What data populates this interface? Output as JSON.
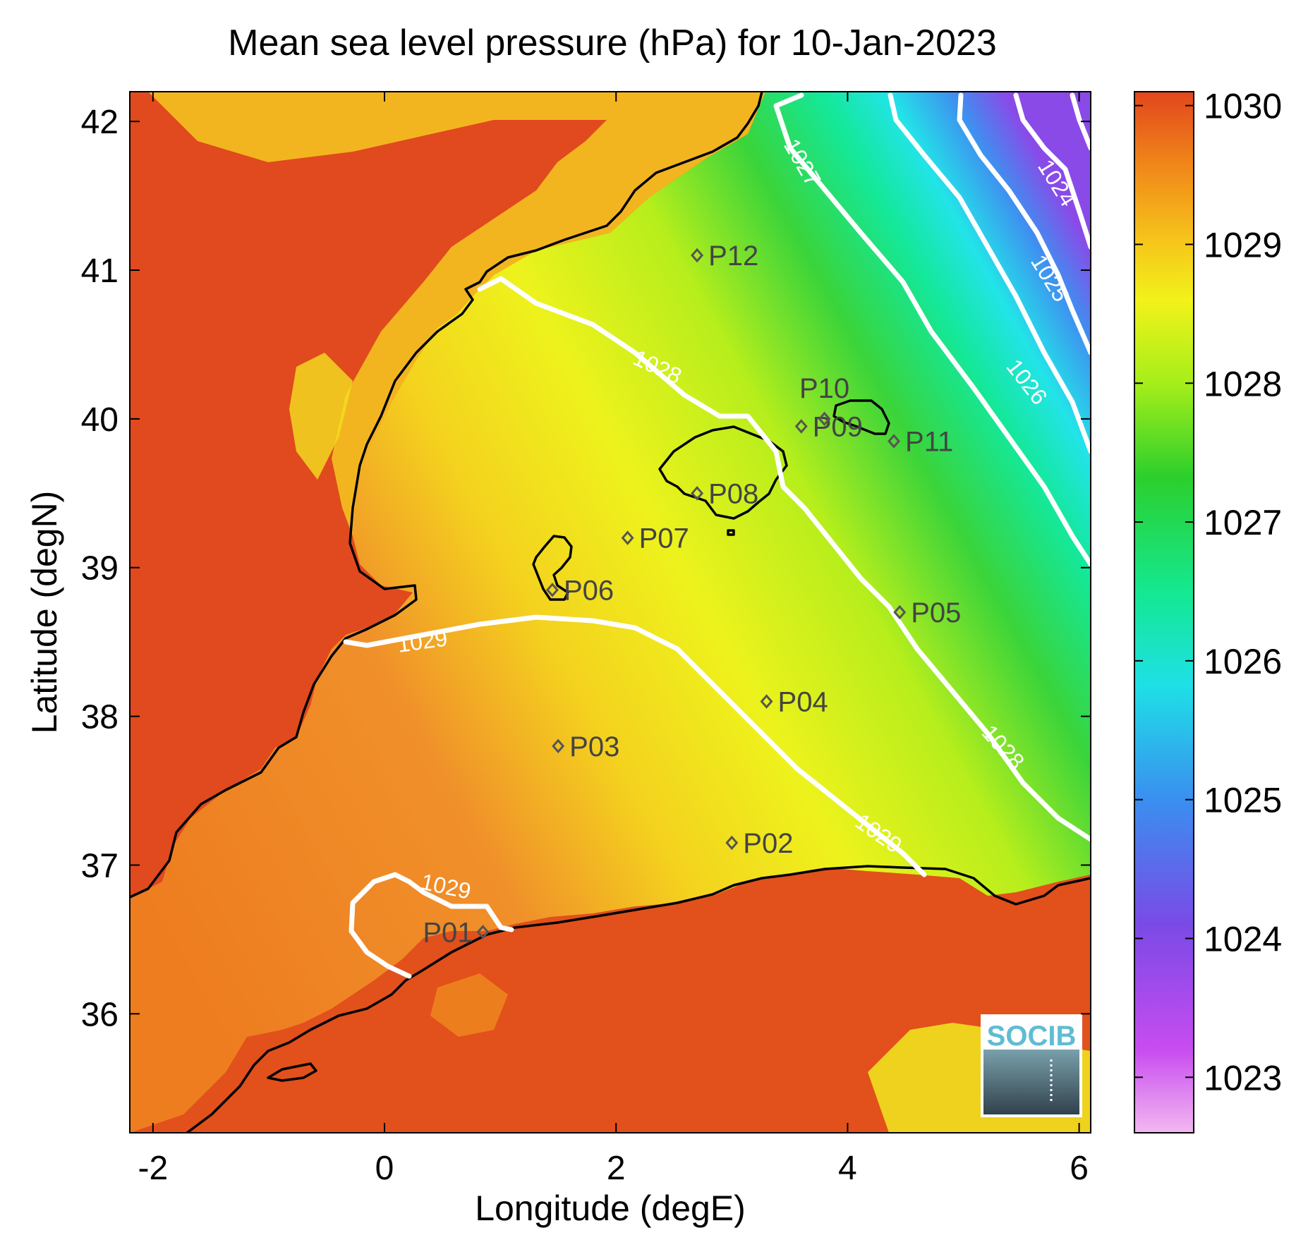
{
  "title": "Mean sea level pressure (hPa) for 10-Jan-2023",
  "x_axis": {
    "label": "Longitude (degE)",
    "range": [
      -2.2,
      6.1
    ],
    "ticks": [
      "-2",
      "0",
      "2",
      "4",
      "6"
    ]
  },
  "y_axis": {
    "label": "Latitude (degN)",
    "range": [
      35.2,
      42.2
    ],
    "ticks": [
      "36",
      "37",
      "38",
      "39",
      "40",
      "41",
      "42"
    ]
  },
  "colorbar": {
    "range": [
      1022.6,
      1030.1
    ],
    "ticks": [
      "1023",
      "1024",
      "1025",
      "1026",
      "1027",
      "1028",
      "1029",
      "1030"
    ],
    "colors": [
      "#f2b8f0",
      "#c84cf0",
      "#7a4ae6",
      "#3a8ff0",
      "#1ee0e6",
      "#14e890",
      "#2ccf2c",
      "#a6ee1a",
      "#f2f21a",
      "#f6c21a",
      "#f0861a",
      "#e2461c"
    ]
  },
  "contour_labels": [
    "1027",
    "1024",
    "1025",
    "1026",
    "1028",
    "1028",
    "1029",
    "1029",
    "1029"
  ],
  "stations": [
    {
      "label": "P01",
      "lon": 0.85,
      "lat": 36.55
    },
    {
      "label": "P02",
      "lon": 3.0,
      "lat": 37.15
    },
    {
      "label": "P03",
      "lon": 1.5,
      "lat": 37.8
    },
    {
      "label": "P04",
      "lon": 3.3,
      "lat": 38.1
    },
    {
      "label": "P05",
      "lon": 4.45,
      "lat": 38.7
    },
    {
      "label": "P06",
      "lon": 1.45,
      "lat": 38.85
    },
    {
      "label": "P07",
      "lon": 2.1,
      "lat": 39.2
    },
    {
      "label": "P08",
      "lon": 2.7,
      "lat": 39.5
    },
    {
      "label": "P09",
      "lon": 3.6,
      "lat": 39.95
    },
    {
      "label": "P10",
      "lon": 3.8,
      "lat": 40.0
    },
    {
      "label": "P11",
      "lon": 4.4,
      "lat": 39.85
    },
    {
      "label": "P12",
      "lon": 2.7,
      "lat": 41.1
    }
  ],
  "logo": {
    "text": "SOCIB"
  },
  "colors": {
    "sea_high": "#ef7a1e",
    "land_high": "#e04a1e",
    "contour": "#ffffff",
    "coast": "#000000",
    "station": "#555555"
  }
}
